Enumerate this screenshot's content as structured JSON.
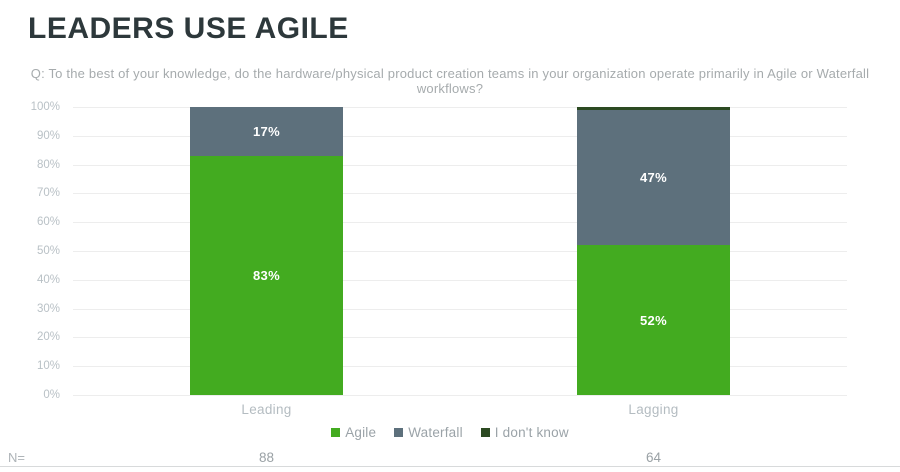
{
  "title": "LEADERS USE AGILE",
  "subtitle": "Q: To the best of your knowledge, do the hardware/physical product creation teams in your organization operate primarily in Agile or Waterfall workflows?",
  "n_label": "N=",
  "colors": {
    "agile_green": "#43ab20",
    "waterfall_gray": "#5d707c",
    "idk_dark_green": "#2c4a22",
    "title_charcoal": "#2d383b",
    "axis_gray": "#b9c1c6",
    "grid_gray": "#ededed"
  },
  "chart_data": {
    "type": "bar",
    "subtype": "stacked-100",
    "categories": [
      "Leading",
      "Lagging"
    ],
    "series": [
      {
        "name": "Agile",
        "color": "#43ab20",
        "values": [
          83,
          52
        ]
      },
      {
        "name": "Waterfall",
        "color": "#5d707c",
        "values": [
          17,
          47
        ]
      },
      {
        "name": "I don't know",
        "color": "#2c4a22",
        "values": [
          0,
          1
        ]
      }
    ],
    "stack_order_top_to_bottom": [
      "I don't know",
      "Waterfall",
      "Agile"
    ],
    "segment_labels": {
      "Leading": {
        "Agile": "83%",
        "Waterfall": "17%"
      },
      "Lagging": {
        "Agile": "52%",
        "Waterfall": "47%"
      }
    },
    "n_values": [
      "88",
      "64"
    ],
    "title": "LEADERS USE AGILE",
    "xlabel": "",
    "ylabel": "",
    "ylim": [
      0,
      100
    ],
    "yticks": [
      "0%",
      "10%",
      "20%",
      "30%",
      "40%",
      "50%",
      "60%",
      "70%",
      "80%",
      "90%",
      "100%"
    ],
    "grid": true,
    "legend_position": "bottom"
  }
}
